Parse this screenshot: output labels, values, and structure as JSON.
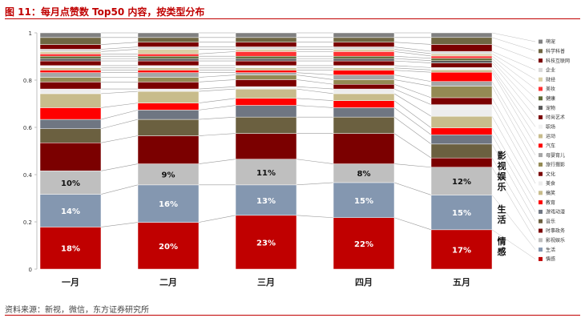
{
  "title": "图 11：每月点赞数 Top50 内容，按类型分布",
  "source": "资料来源：新视，微信，东方证券研究所",
  "side_labels": [
    "影视娱乐",
    "生活",
    "情感"
  ],
  "chart_data": {
    "type": "bar",
    "stacked": true,
    "categories": [
      "一月",
      "二月",
      "三月",
      "四月",
      "五月"
    ],
    "ylim": [
      0,
      1
    ],
    "yticks": [
      "0",
      "0.2",
      "0.4",
      "0.6",
      "0.8",
      "1"
    ],
    "grid": false,
    "legend_position": "right",
    "series": [
      {
        "name": "情感",
        "color": "#c00000",
        "values": [
          0.18,
          0.2,
          0.23,
          0.22,
          0.17
        ],
        "labels": [
          "18%",
          "20%",
          "23%",
          "22%",
          "17%"
        ],
        "label_color": "#ffffff"
      },
      {
        "name": "生活",
        "color": "#8497b0",
        "values": [
          0.14,
          0.16,
          0.13,
          0.15,
          0.15
        ],
        "labels": [
          "14%",
          "16%",
          "13%",
          "15%",
          "15%"
        ],
        "label_color": "#ffffff"
      },
      {
        "name": "影视娱乐",
        "color": "#bfbfbf",
        "values": [
          0.1,
          0.09,
          0.11,
          0.08,
          0.12
        ],
        "labels": [
          "10%",
          "9%",
          "11%",
          "8%",
          "12%"
        ],
        "label_color": "#111111"
      },
      {
        "name": "时事政务",
        "color": "#7b0000",
        "values": [
          0.12,
          0.12,
          0.11,
          0.13,
          0.04
        ]
      },
      {
        "name": "音乐",
        "color": "#6b6040",
        "values": [
          0.06,
          0.07,
          0.07,
          0.07,
          0.06
        ]
      },
      {
        "name": "游戏动漫",
        "color": "#6f7682",
        "values": [
          0.04,
          0.04,
          0.05,
          0.04,
          0.04
        ]
      },
      {
        "name": "教育",
        "color": "#ff0000",
        "values": [
          0.05,
          0.03,
          0.03,
          0.03,
          0.03
        ]
      },
      {
        "name": "搞笑",
        "color": "#c8bc8c",
        "values": [
          0.06,
          0.05,
          0.04,
          0.03,
          0.05
        ]
      },
      {
        "name": "美食",
        "color": "#ededed",
        "values": [
          0.02,
          0.01,
          0.01,
          0.02,
          0.05
        ]
      },
      {
        "name": "文化",
        "color": "#7b0000",
        "values": [
          0.03,
          0.03,
          0.03,
          0.02,
          0.03
        ]
      },
      {
        "name": "旅行摄影",
        "color": "#948a54",
        "values": [
          0.02,
          0.02,
          0.02,
          0.02,
          0.05
        ]
      },
      {
        "name": "母婴育儿",
        "color": "#a6a6a6",
        "values": [
          0.02,
          0.02,
          0.01,
          0.02,
          0.02
        ]
      },
      {
        "name": "汽车",
        "color": "#ff0000",
        "values": [
          0.01,
          0.01,
          0.01,
          0.02,
          0.04
        ]
      },
      {
        "name": "运动",
        "color": "#c8bc8c",
        "values": [
          0.01,
          0.01,
          0.01,
          0.01,
          0.01
        ]
      },
      {
        "name": "职场",
        "color": "#f2f2f2",
        "values": [
          0.01,
          0.01,
          0.01,
          0.01,
          0.01
        ]
      },
      {
        "name": "时尚艺术",
        "color": "#7b0000",
        "values": [
          0.02,
          0.02,
          0.02,
          0.02,
          0.02
        ]
      },
      {
        "name": "宠物",
        "color": "#595959",
        "values": [
          0.01,
          0.01,
          0.01,
          0.01,
          0.01
        ]
      },
      {
        "name": "健康",
        "color": "#5f6b35",
        "values": [
          0.01,
          0.01,
          0.01,
          0.01,
          0.01
        ]
      },
      {
        "name": "美妆",
        "color": "#ff3333",
        "values": [
          0.01,
          0.01,
          0.02,
          0.02,
          0.01
        ]
      },
      {
        "name": "财经",
        "color": "#d9cfa6",
        "values": [
          0.01,
          0.02,
          0.01,
          0.01,
          0.01
        ]
      },
      {
        "name": "企业",
        "color": "#d9d9d9",
        "values": [
          0.01,
          0.01,
          0.01,
          0.01,
          0.01
        ]
      },
      {
        "name": "科技互联网",
        "color": "#7b0000",
        "values": [
          0.02,
          0.02,
          0.02,
          0.02,
          0.03
        ]
      },
      {
        "name": "科学科普",
        "color": "#6f6642",
        "values": [
          0.03,
          0.02,
          0.02,
          0.02,
          0.03
        ]
      },
      {
        "name": "萌宠",
        "color": "#808080",
        "values": [
          0.02,
          0.02,
          0.02,
          0.02,
          0.02
        ]
      }
    ]
  }
}
